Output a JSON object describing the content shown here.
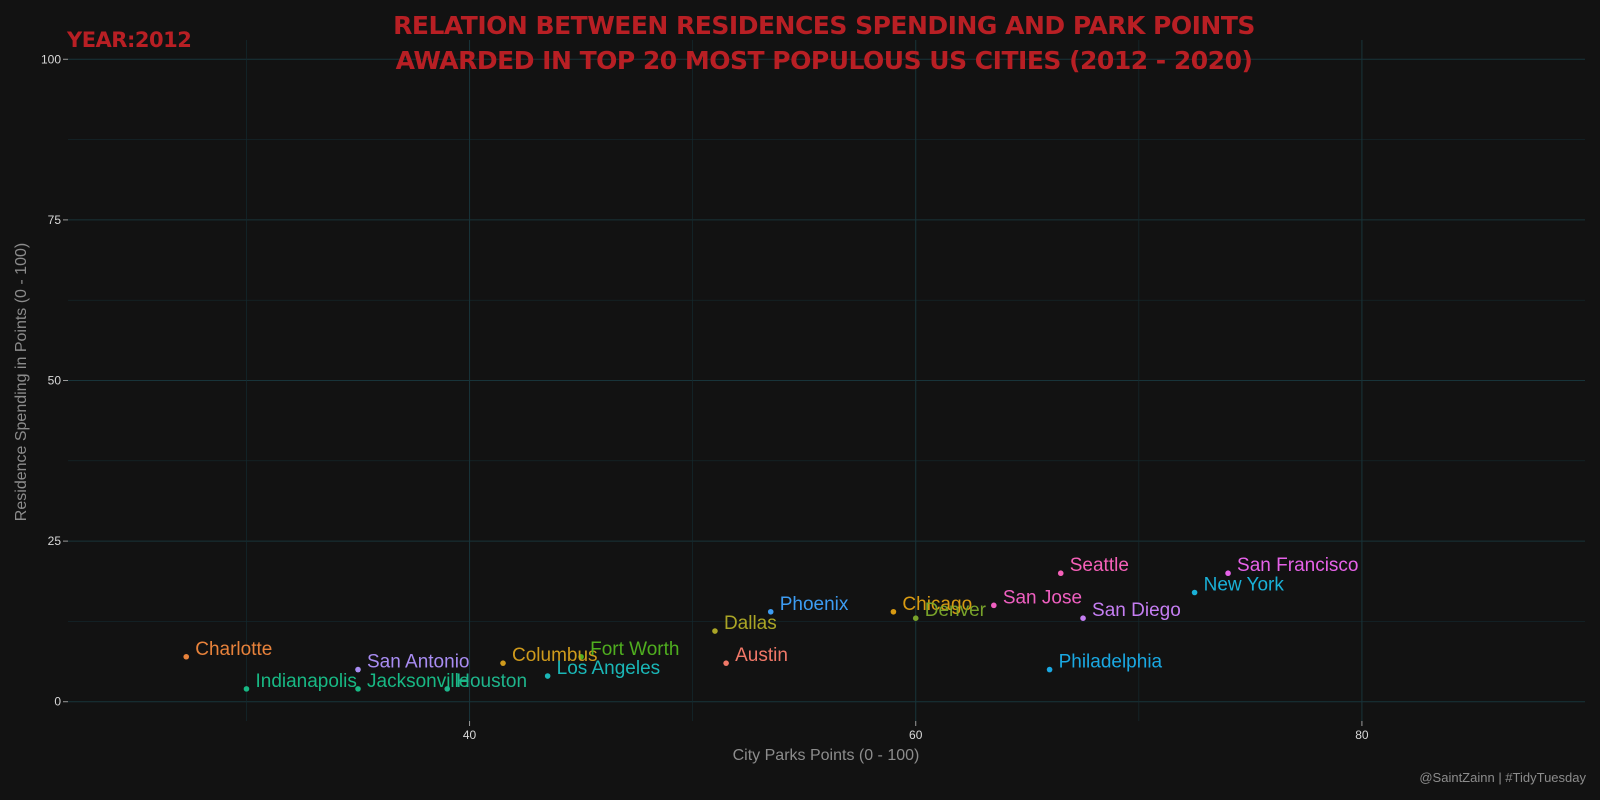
{
  "chart_data": {
    "type": "scatter",
    "title_lines": [
      "RELATION BETWEEN RESIDENCES SPENDING AND PARK POINTS",
      "AWARDED IN TOP 20 MOST POPULOUS US CITIES (2012 - 2020)"
    ],
    "year_label": "YEAR:2012",
    "xlabel": "City Parks Points (0 - 100)",
    "ylabel": "Residence Spending in Points (0 - 100)",
    "caption": "@SaintZainn | #TidyTuesday",
    "xlim": [
      22,
      90
    ],
    "ylim": [
      -3,
      103
    ],
    "x_ticks": [
      40,
      60,
      80
    ],
    "y_ticks": [
      0,
      25,
      50,
      75,
      100
    ],
    "grid": true,
    "points": [
      {
        "label": "Charlotte",
        "x": 27.3,
        "y": 7,
        "color": "#e8823b"
      },
      {
        "label": "San Antonio",
        "x": 35,
        "y": 5,
        "color": "#a88cf2"
      },
      {
        "label": "Indianapolis",
        "x": 30,
        "y": 2,
        "color": "#18b884"
      },
      {
        "label": "Jacksonville",
        "x": 35,
        "y": 2,
        "color": "#18b884"
      },
      {
        "label": "Houston",
        "x": 39,
        "y": 2,
        "color": "#1eb58c"
      },
      {
        "label": "Columbus",
        "x": 41.5,
        "y": 6,
        "color": "#cf9a1c"
      },
      {
        "label": "Fort Worth",
        "x": 45,
        "y": 7,
        "color": "#4fae1f"
      },
      {
        "label": "Los Angeles",
        "x": 43.5,
        "y": 4,
        "color": "#1ab7b7"
      },
      {
        "label": "Dallas",
        "x": 51,
        "y": 11,
        "color": "#aaa526"
      },
      {
        "label": "Austin",
        "x": 51.5,
        "y": 6,
        "color": "#f07868"
      },
      {
        "label": "Phoenix",
        "x": 53.5,
        "y": 14,
        "color": "#3d9cf2"
      },
      {
        "label": "Chicago",
        "x": 59,
        "y": 14,
        "color": "#d89a12"
      },
      {
        "label": "Denver",
        "x": 60,
        "y": 13,
        "color": "#78a22a"
      },
      {
        "label": "San Jose",
        "x": 63.5,
        "y": 15,
        "color": "#ef5fc0"
      },
      {
        "label": "Seattle",
        "x": 66.5,
        "y": 20,
        "color": "#f560b8"
      },
      {
        "label": "San Diego",
        "x": 67.5,
        "y": 13,
        "color": "#c57ef2"
      },
      {
        "label": "Philadelphia",
        "x": 66,
        "y": 5,
        "color": "#1aa8e2"
      },
      {
        "label": "New York",
        "x": 72.5,
        "y": 17,
        "color": "#1ab1d8"
      },
      {
        "label": "San Francisco",
        "x": 74,
        "y": 20,
        "color": "#e662e8"
      }
    ]
  }
}
